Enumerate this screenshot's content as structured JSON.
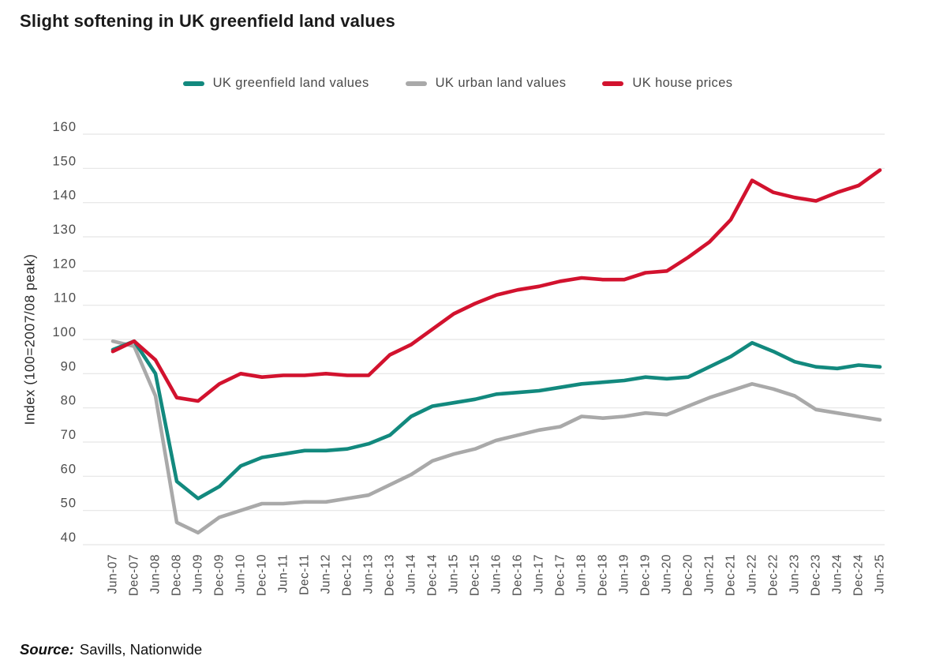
{
  "title": "Slight softening in UK greenfield land values",
  "source": {
    "label": "Source:",
    "text": "Savills, Nationwide"
  },
  "colors": {
    "greenfield": "#12897E",
    "urban": "#A9A9A9",
    "house": "#D2122E",
    "gridline": "#E5E5E5",
    "tick_text": "#4D4D4D",
    "title_text": "#1A1A1A"
  },
  "chart_data": {
    "type": "line",
    "title": "Slight softening in UK greenfield land values",
    "ylabel": "Index (100=2007/08 peak)",
    "xlabel": "",
    "ylim": [
      40,
      160
    ],
    "ytick_step": 10,
    "grid": "horizontal",
    "legend_position": "top",
    "categories": [
      "Jun-07",
      "Dec-07",
      "Jun-08",
      "Dec-08",
      "Jun-09",
      "Dec-09",
      "Jun-10",
      "Dec-10",
      "Jun-11",
      "Dec-11",
      "Jun-12",
      "Dec-12",
      "Jun-13",
      "Dec-13",
      "Jun-14",
      "Dec-14",
      "Jun-15",
      "Dec-15",
      "Jun-16",
      "Dec-16",
      "Jun-17",
      "Dec-17",
      "Jun-18",
      "Dec-18",
      "Jun-19",
      "Dec-19",
      "Jun-20",
      "Dec-20",
      "Jun-21",
      "Dec-21",
      "Jun-22",
      "Dec-22",
      "Jun-23",
      "Dec-23",
      "Jun-24",
      "Dec-24",
      "Jun-25"
    ],
    "series": [
      {
        "key": "urban",
        "name": "UK urban land values",
        "color": "#A9A9A9",
        "values": [
          99.5,
          98,
          83.5,
          46.5,
          43.5,
          48,
          50,
          52,
          52,
          52.5,
          52.5,
          53.5,
          54.5,
          57.5,
          60.5,
          64.5,
          66.5,
          68,
          70.5,
          72,
          73.5,
          74.5,
          77.5,
          77,
          77.5,
          78.5,
          78,
          80.5,
          83,
          85,
          87,
          85.5,
          83.5,
          79.5,
          78.5,
          77.5,
          76.5
        ]
      },
      {
        "key": "greenfield",
        "name": "UK greenfield land values",
        "color": "#12897E",
        "values": [
          97,
          99.5,
          90,
          58.5,
          53.5,
          57,
          63,
          65.5,
          66.5,
          67.5,
          67.5,
          68,
          69.5,
          72,
          77.5,
          80.5,
          81.5,
          82.5,
          84,
          84.5,
          85,
          86,
          87,
          87.5,
          88,
          89,
          88.5,
          89,
          92,
          95,
          99,
          96.5,
          93.5,
          92,
          91.5,
          92.5,
          92
        ]
      },
      {
        "key": "house",
        "name": "UK house prices",
        "color": "#D2122E",
        "values": [
          96.5,
          99.5,
          94,
          83,
          82,
          87,
          90,
          89,
          89.5,
          89.5,
          90,
          89.5,
          89.5,
          95.5,
          98.5,
          103,
          107.5,
          110.5,
          113,
          114.5,
          115.5,
          117,
          118,
          117.5,
          117.5,
          119.5,
          120,
          124,
          128.5,
          135,
          146.5,
          143,
          141.5,
          140.5,
          143,
          145,
          149.5
        ]
      }
    ]
  },
  "legend_order": [
    "greenfield",
    "urban",
    "house"
  ]
}
